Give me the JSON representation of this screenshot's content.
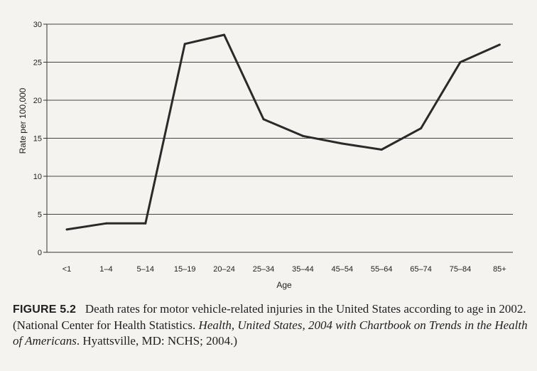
{
  "chart_data": {
    "type": "line",
    "xlabel": "Age",
    "ylabel": "Rate per 100,000",
    "categories": [
      "<1",
      "1–4",
      "5–14",
      "15–19",
      "20–24",
      "25–34",
      "35–44",
      "45–54",
      "55–64",
      "65–74",
      "75–84",
      "85+"
    ],
    "values": [
      3.0,
      3.8,
      3.8,
      27.4,
      28.6,
      17.5,
      15.3,
      14.3,
      13.5,
      16.3,
      25.0,
      27.3
    ],
    "ylim": [
      0,
      30
    ],
    "yticks": [
      0,
      5,
      10,
      15,
      20,
      25,
      30
    ],
    "grid": "horizontal",
    "line_color": "#2a2a2a"
  },
  "caption": {
    "label": "FIGURE 5.2",
    "text1": "Death rates for motor vehicle-related injuries in the United States according to age in 2002. (National Center for Health Statistics. ",
    "italic1": "Health, United States, 2004 with Chartbook on Trends in the Health of Americans",
    "text2": ". Hyattsville, MD: NCHS; 2004.)"
  }
}
